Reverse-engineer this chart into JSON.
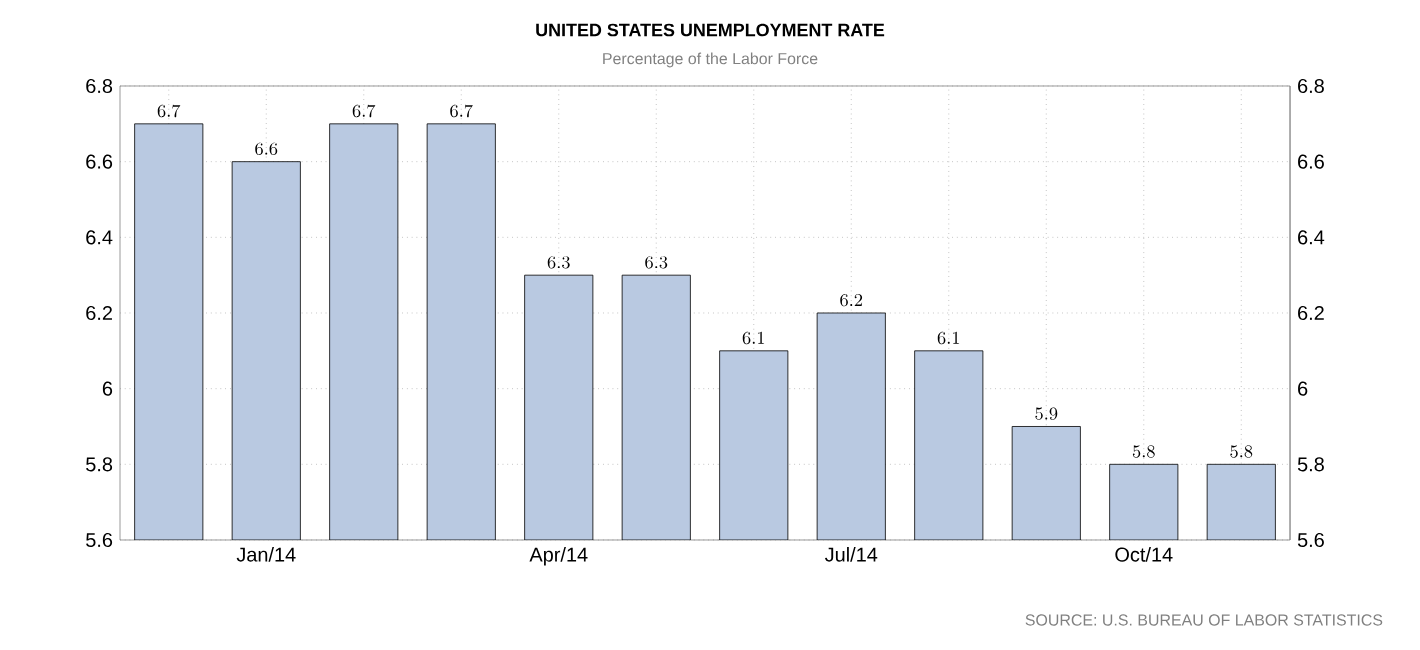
{
  "chart_data": {
    "type": "bar",
    "title": "UNITED STATES UNEMPLOYMENT RATE",
    "subtitle": "Percentage of the Labor Force",
    "categories": [
      null,
      "Jan/14",
      null,
      null,
      "Apr/14",
      null,
      null,
      "Jul/14",
      null,
      null,
      "Oct/14",
      null
    ],
    "values": [
      6.7,
      6.6,
      6.7,
      6.7,
      6.3,
      6.3,
      6.1,
      6.2,
      6.1,
      5.9,
      5.8,
      5.8
    ],
    "color": "#b9c9e1",
    "data_labels": true,
    "grid": true,
    "ylim": [
      5.6,
      6.8
    ],
    "yticks": [
      5.6,
      5.8,
      6,
      6.2,
      6.4,
      6.6,
      6.8
    ],
    "y2lim": [
      5.6,
      6.8
    ],
    "y2ticks": [
      5.6,
      5.8,
      6,
      6.2,
      6.4,
      6.6,
      6.8
    ],
    "annotations": [
      "SOURCE: U.S. BUREAU OF LABOR STATISTICS"
    ]
  }
}
